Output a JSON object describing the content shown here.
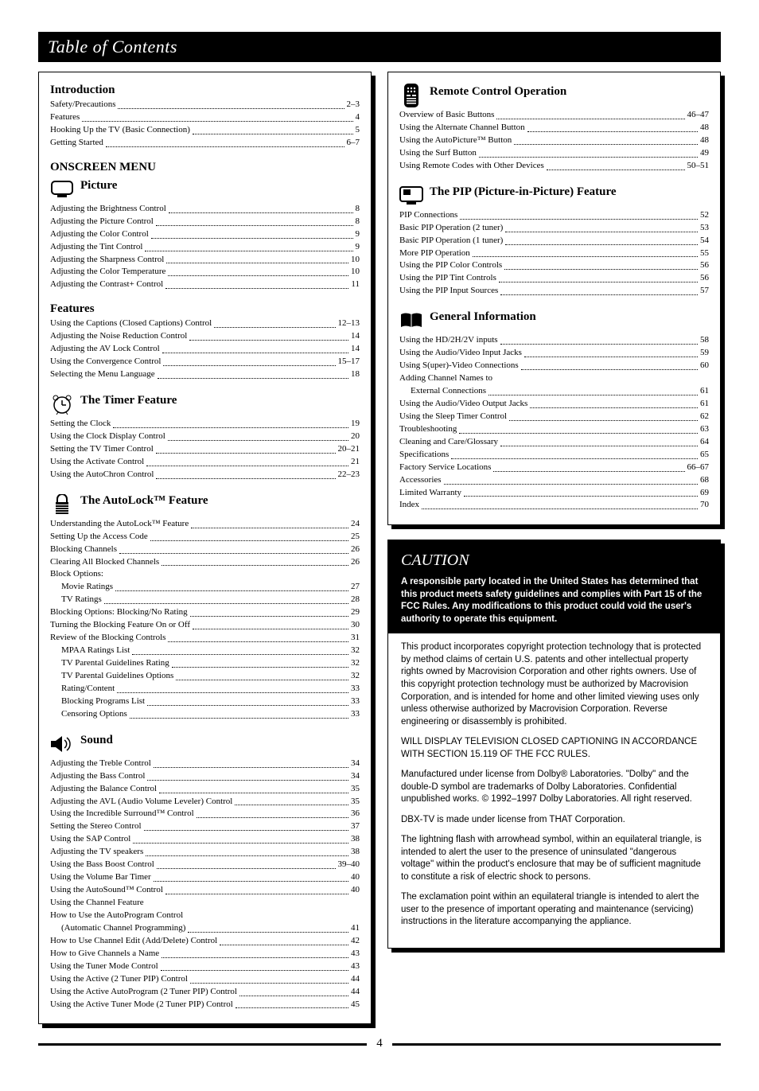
{
  "title": "Table of Contents",
  "page_number": "4",
  "intro": {
    "label": "Introduction",
    "items": [
      {
        "t": "Safety/Precautions",
        "p": "2–3"
      },
      {
        "t": "Features",
        "p": "4"
      },
      {
        "t": "Hooking Up the TV (Basic Connection)",
        "p": "5"
      },
      {
        "t": "Getting Started",
        "p": "6–7"
      }
    ]
  },
  "onscreen_label": "ONSCREEN MENU",
  "picture": {
    "label": "Picture",
    "items": [
      {
        "t": "Adjusting the Brightness Control",
        "p": "8"
      },
      {
        "t": "Adjusting the Picture Control",
        "p": "8"
      },
      {
        "t": "Adjusting the Color Control",
        "p": "9"
      },
      {
        "t": "Adjusting the Tint Control",
        "p": "9"
      },
      {
        "t": "Adjusting the Sharpness Control",
        "p": "10"
      },
      {
        "t": "Adjusting the Color Temperature",
        "p": "10"
      },
      {
        "t": "Adjusting the Contrast+ Control",
        "p": "11"
      }
    ]
  },
  "features": {
    "label": "Features",
    "items": [
      {
        "t": "Using the Captions (Closed Captions) Control",
        "p": "12–13"
      },
      {
        "t": "Adjusting the Noise Reduction Control",
        "p": "14"
      },
      {
        "t": "Adjusting the AV Lock Control",
        "p": "14"
      },
      {
        "t": "Using the Convergence Control",
        "p": "15–17"
      },
      {
        "t": "Selecting the Menu Language",
        "p": "18"
      }
    ]
  },
  "timer": {
    "label": "The Timer Feature",
    "items": [
      {
        "t": "Setting the Clock",
        "p": "19"
      },
      {
        "t": "Using the Clock Display Control",
        "p": "20"
      },
      {
        "t": "Setting the TV Timer Control",
        "p": "20–21"
      },
      {
        "t": "Using the Activate Control",
        "p": "21"
      },
      {
        "t": "Using the AutoChron Control",
        "p": "22–23"
      }
    ]
  },
  "autolock": {
    "label": "The AutoLock™ Feature",
    "items": [
      {
        "t": "Understanding the AutoLock™ Feature",
        "p": "24"
      },
      {
        "t": "Setting Up the Access Code",
        "p": "25"
      },
      {
        "t": "Blocking Channels",
        "p": "26"
      },
      {
        "t": "Clearing All Blocked Channels",
        "p": "26"
      },
      {
        "t": "Block Options:",
        "p": ""
      },
      {
        "t": "Movie Ratings",
        "p": "27",
        "sub": 1
      },
      {
        "t": "TV Ratings",
        "p": "28",
        "sub": 1
      },
      {
        "t": "Blocking Options: Blocking/No Rating",
        "p": "29"
      },
      {
        "t": "Turning the Blocking Feature On or Off",
        "p": "30"
      },
      {
        "t": "Review of the Blocking Controls",
        "p": "31"
      },
      {
        "t": "MPAA Ratings List",
        "p": "32",
        "sub": 1
      },
      {
        "t": "TV Parental Guidelines Rating",
        "p": "32",
        "sub": 1
      },
      {
        "t": "TV Parental Guidelines Options",
        "p": "32",
        "sub": 1
      },
      {
        "t": "Rating/Content",
        "p": "33",
        "sub": 1
      },
      {
        "t": "Blocking Programs List",
        "p": "33",
        "sub": 1
      },
      {
        "t": "Censoring Options",
        "p": "33",
        "sub": 1
      }
    ]
  },
  "sound": {
    "label": "Sound",
    "items": [
      {
        "t": "Adjusting the Treble Control",
        "p": "34"
      },
      {
        "t": "Adjusting the Bass Control",
        "p": "34"
      },
      {
        "t": "Adjusting the Balance Control",
        "p": "35"
      },
      {
        "t": "Adjusting the AVL (Audio Volume Leveler) Control",
        "p": "35"
      },
      {
        "t": "Using the Incredible Surround™ Control",
        "p": "36"
      },
      {
        "t": "Setting the Stereo Control",
        "p": "37"
      },
      {
        "t": "Using the SAP Control",
        "p": "38"
      },
      {
        "t": "Adjusting the TV speakers",
        "p": "38"
      },
      {
        "t": "Using the Bass Boost Control",
        "p": "39–40"
      },
      {
        "t": "Using the Volume Bar Timer",
        "p": "40"
      },
      {
        "t": "Using the AutoSound™ Control",
        "p": "40"
      },
      {
        "t": "Using the Channel Feature",
        "p": ""
      },
      {
        "t": "How to Use the AutoProgram Control",
        "p": ""
      },
      {
        "t": "(Automatic Channel Programming)",
        "p": "41",
        "sub": 1
      },
      {
        "t": "How to Use Channel Edit (Add/Delete) Control",
        "p": "42"
      },
      {
        "t": "How to Give Channels a Name",
        "p": "43"
      },
      {
        "t": "Using the Tuner Mode Control",
        "p": "43"
      },
      {
        "t": "Using the Active (2 Tuner PIP) Control",
        "p": "44"
      },
      {
        "t": "Using the Active AutoProgram (2 Tuner PIP) Control",
        "p": "44"
      },
      {
        "t": "Using the Active Tuner Mode (2 Tuner PIP) Control",
        "p": "45"
      }
    ]
  },
  "remote": {
    "label": "Remote Control Operation",
    "items": [
      {
        "t": "Overview of Basic Buttons",
        "p": "46–47"
      },
      {
        "t": "Using the Alternate Channel Button",
        "p": "48"
      },
      {
        "t": "Using the AutoPicture™ Button",
        "p": "48"
      },
      {
        "t": "Using the Surf Button",
        "p": "49"
      },
      {
        "t": "Using Remote Codes with Other Devices",
        "p": "50–51"
      }
    ]
  },
  "pip": {
    "label": "The PIP (Picture-in-Picture) Feature",
    "items": [
      {
        "t": "PIP Connections",
        "p": "52"
      },
      {
        "t": "Basic PIP Operation (2 tuner)",
        "p": "53"
      },
      {
        "t": "Basic PIP Operation (1 tuner)",
        "p": "54"
      },
      {
        "t": "More PIP Operation",
        "p": "55"
      },
      {
        "t": "Using the PIP Color Controls",
        "p": "56"
      },
      {
        "t": "Using the PIP Tint Controls",
        "p": "56"
      },
      {
        "t": "Using the PIP Input Sources",
        "p": "57"
      }
    ]
  },
  "general": {
    "label": "General Information",
    "items": [
      {
        "t": "Using the HD/2H/2V inputs",
        "p": "58"
      },
      {
        "t": "Using the Audio/Video Input Jacks",
        "p": "59"
      },
      {
        "t": "Using S(uper)-Video Connections",
        "p": "60"
      },
      {
        "t": "Adding Channel Names to",
        "p": ""
      },
      {
        "t": "External Connections",
        "p": "61",
        "sub": 1
      },
      {
        "t": "Using the Audio/Video Output Jacks",
        "p": "61"
      },
      {
        "t": "Using the Sleep Timer Control",
        "p": "62"
      },
      {
        "t": "Troubleshooting",
        "p": "63"
      },
      {
        "t": "Cleaning and Care/Glossary",
        "p": "64"
      },
      {
        "t": "Specifications",
        "p": "65"
      },
      {
        "t": "Factory Service Locations",
        "p": "66–67"
      },
      {
        "t": "Accessories",
        "p": "68"
      },
      {
        "t": "Limited Warranty",
        "p": "69"
      },
      {
        "t": "Index",
        "p": "70"
      }
    ]
  },
  "caution": {
    "title": "CAUTION",
    "bold_text": "A responsible party located in the United States has determined that this product meets safety guidelines and complies with Part 15 of the FCC Rules. Any modifications to this product could void the user's authority to operate this equipment.",
    "paras": [
      "This product incorporates copyright protection technology that is protected by method claims of certain U.S. patents and other intellectual property rights owned by Macrovision Corporation and other rights owners. Use of this copyright protection technology must be authorized by Macrovision Corporation, and is intended for home and other limited viewing uses only unless otherwise authorized by Macrovision Corporation. Reverse engineering or disassembly is prohibited.",
      "WILL DISPLAY TELEVISION CLOSED CAPTIONING IN ACCORDANCE WITH SECTION 15.119 OF THE FCC RULES.",
      "Manufactured under license from Dolby® Laboratories. \"Dolby\" and the double-D symbol are trademarks of Dolby Laboratories. Confidential unpublished works. © 1992–1997 Dolby Laboratories. All right reserved.",
      "DBX-TV is made under license from THAT Corporation.",
      "The lightning flash with arrowhead symbol, within an equilateral triangle, is intended to alert the user to the presence of uninsulated \"dangerous voltage\" within the product's enclosure that may be of sufficient magnitude to constitute a risk of electric shock to persons.",
      "The exclamation point within an equilateral triangle is intended to alert the user to the presence of important operating and maintenance (servicing) instructions in the literature accompanying the appliance."
    ]
  }
}
